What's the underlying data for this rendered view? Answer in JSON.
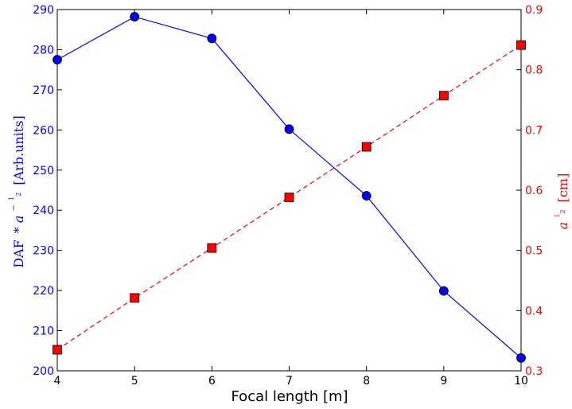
{
  "chart_data": {
    "type": "line",
    "title": "",
    "xlabel": "Focal length [m]",
    "x_ticks": [
      "4",
      "5",
      "6",
      "7",
      "8",
      "9",
      "10"
    ],
    "xlim": [
      4,
      10
    ],
    "left_axis": {
      "label_main": "DAF",
      "label_op": "*",
      "label_var": "a",
      "label_sup": "−",
      "label_frac_num": "1",
      "label_frac_den": "2",
      "label_units": "[Arb.units]",
      "ylim": [
        200,
        290
      ],
      "ticks": [
        "200",
        "210",
        "220",
        "230",
        "240",
        "250",
        "260",
        "270",
        "280",
        "290"
      ],
      "color": "#0000ff"
    },
    "right_axis": {
      "label_var": "a",
      "label_frac_num": "1",
      "label_frac_den": "2",
      "label_units": "[cm]",
      "ylim": [
        0.3,
        0.9
      ],
      "ticks": [
        "0.3",
        "0.4",
        "0.5",
        "0.6",
        "0.7",
        "0.8",
        "0.9"
      ],
      "color": "#ff0000"
    },
    "series": [
      {
        "axis": "left",
        "color": "#0000ff",
        "line": "solid",
        "marker": "circle",
        "x": [
          4,
          5,
          6,
          7,
          8,
          9,
          10
        ],
        "values": [
          277.5,
          288.2,
          282.8,
          260.2,
          243.6,
          219.9,
          203.2
        ]
      },
      {
        "axis": "right",
        "color": "#ff0000",
        "line": "dashed",
        "marker": "square",
        "x": [
          4,
          5,
          6,
          7,
          8,
          9,
          10
        ],
        "values": [
          0.335,
          0.421,
          0.504,
          0.588,
          0.672,
          0.757,
          0.841
        ]
      }
    ],
    "grid": false,
    "legend": "none"
  }
}
